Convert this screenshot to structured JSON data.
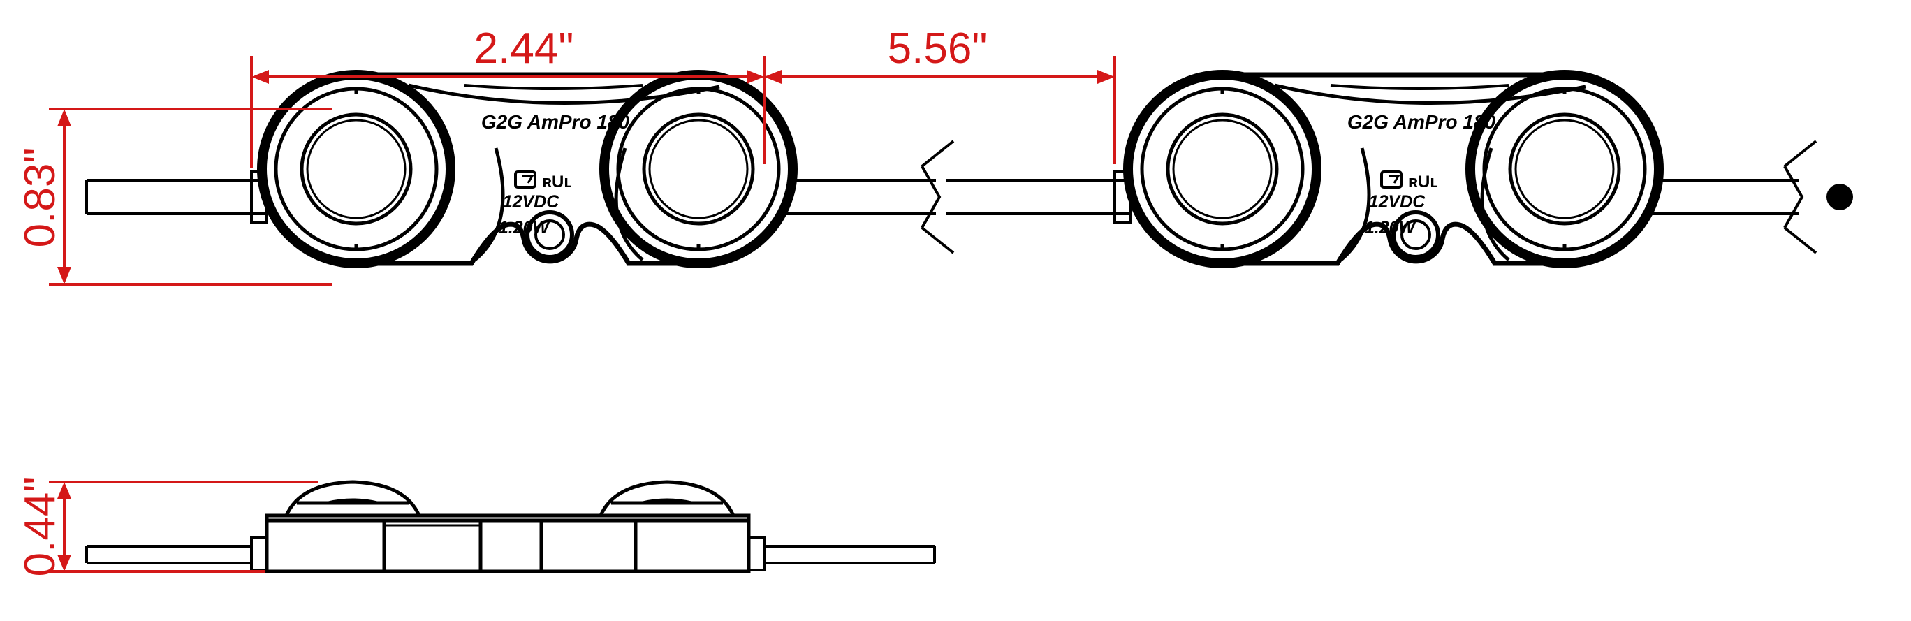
{
  "dimensions": {
    "module_length": "2.44\"",
    "module_spacing": "5.56\"",
    "module_height": "0.83\"",
    "module_depth": "0.44\""
  },
  "module": {
    "model": "G2G AmPro 180",
    "voltage": "12VDC",
    "power": "1.20W"
  },
  "colors": {
    "dimension": "#d41818",
    "outline": "#000000",
    "background": "#ffffff"
  }
}
